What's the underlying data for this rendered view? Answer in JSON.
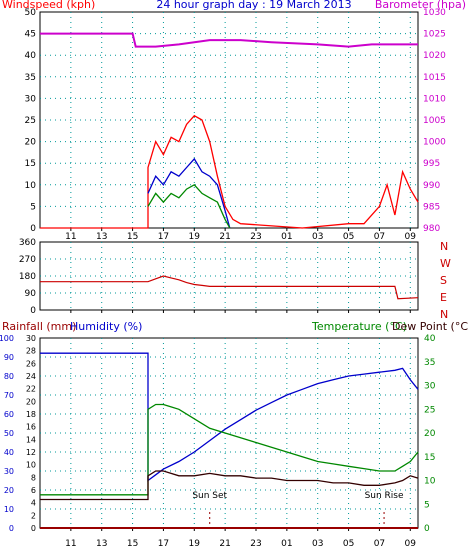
{
  "colors": {
    "windspeed": "#ff0000",
    "barometer": "#cc00cc",
    "direction": "#cc0000",
    "rainfall": "#990000",
    "humidity": "#0000cc",
    "temperature": "#008800",
    "dewpoint": "#330000",
    "title": "#0000cc"
  },
  "chart_data": [
    {
      "type": "line",
      "panel": "wind-barometer",
      "title": "24 hour graph day : 19 March 2013",
      "left_axis_label": "Windspeed (kph)",
      "right_axis_label": "Barometer (hpa)",
      "y_left_ticks": [
        "0",
        "5",
        "10",
        "15",
        "20",
        "25",
        "30",
        "35",
        "40",
        "45",
        "50"
      ],
      "y_right_ticks": [
        "980",
        "985",
        "990",
        "995",
        "1000",
        "1005",
        "1010",
        "1015",
        "1020",
        "1025",
        "1030"
      ],
      "ylim_left": [
        0,
        50
      ],
      "ylim_right": [
        980,
        1030
      ],
      "x_ticks": [
        "11",
        "13",
        "15",
        "17",
        "19",
        "21",
        "23",
        "01",
        "03",
        "05",
        "07",
        "09"
      ],
      "grid": true,
      "series": [
        {
          "name": "Barometer",
          "axis": "right",
          "x": [
            9,
            15,
            15.2,
            16.5,
            18,
            20,
            22,
            24,
            27,
            29,
            30.5,
            32,
            33.5
          ],
          "values": [
            1025,
            1025,
            1022,
            1022,
            1022.5,
            1023.5,
            1023.5,
            1023,
            1022.5,
            1022,
            1022.5,
            1022.5,
            1022.5
          ]
        },
        {
          "name": "Gust",
          "axis": "left",
          "x": [
            9,
            16,
            16,
            16.5,
            17,
            17.5,
            18,
            18.5,
            19,
            19.5,
            20,
            20.5,
            21,
            21.5,
            22,
            26,
            29,
            30,
            31,
            31.5,
            32,
            32.5,
            33,
            33.5
          ],
          "values": [
            0,
            0,
            14,
            20,
            17,
            21,
            20,
            24,
            26,
            25,
            20,
            12,
            5,
            2,
            1,
            0,
            1,
            1,
            5,
            10,
            3,
            13,
            9,
            6
          ]
        },
        {
          "name": "Average",
          "axis": "left",
          "x": [
            16,
            16.5,
            17,
            17.5,
            18,
            18.5,
            19,
            19.5,
            20,
            20.5,
            21,
            21.3
          ],
          "values": [
            8,
            12,
            10,
            13,
            12,
            14,
            16,
            13,
            12,
            10,
            4,
            0
          ]
        },
        {
          "name": "Lull",
          "axis": "left",
          "x": [
            16,
            16.5,
            17,
            17.5,
            18,
            18.5,
            19,
            19.5,
            20,
            20.5,
            21,
            21.3
          ],
          "values": [
            5,
            8,
            6,
            8,
            7,
            9,
            10,
            8,
            7,
            6,
            2,
            0
          ]
        }
      ]
    },
    {
      "type": "line",
      "panel": "wind-direction",
      "y_left_ticks": [
        "0",
        "90",
        "180",
        "270",
        "360"
      ],
      "y_right_labels": [
        "N",
        "W",
        "S",
        "E",
        "N"
      ],
      "ylim": [
        0,
        360
      ],
      "x_ticks": [
        "11",
        "13",
        "15",
        "17",
        "19",
        "21",
        "23",
        "01",
        "03",
        "05",
        "07",
        "09"
      ],
      "grid": true,
      "series": [
        {
          "name": "Direction",
          "x": [
            9,
            16,
            16.5,
            17,
            17.5,
            18,
            18.5,
            19,
            19.5,
            20,
            20.5,
            21,
            31,
            32,
            32.2,
            33.5
          ],
          "values": [
            150,
            150,
            165,
            180,
            170,
            160,
            145,
            135,
            130,
            125,
            125,
            125,
            125,
            125,
            60,
            65
          ]
        }
      ]
    },
    {
      "type": "line",
      "panel": "rain-humidity-temp",
      "left_axis_label_1": "Rainfall (mm)",
      "left_axis_label_2": "Humidity (%)",
      "right_axis_label_1": "Temperature (°C)",
      "right_axis_label_2": "Dew Point (°C)",
      "y_rain_ticks": [
        "0",
        "2",
        "4",
        "6",
        "8",
        "10",
        "12",
        "14",
        "16",
        "18",
        "20",
        "22",
        "24",
        "26",
        "28",
        "30"
      ],
      "y_humidity_ticks": [
        "0",
        "10",
        "20",
        "30",
        "40",
        "50",
        "60",
        "70",
        "80",
        "90",
        "100"
      ],
      "y_temp_ticks": [
        "0",
        "5",
        "10",
        "15",
        "20",
        "25",
        "30",
        "35",
        "40"
      ],
      "x_ticks": [
        "11",
        "13",
        "15",
        "17",
        "19",
        "21",
        "23",
        "01",
        "03",
        "05",
        "07",
        "09"
      ],
      "annotations": [
        "Sun Set",
        "Sun Rise"
      ],
      "annotation_x": [
        20,
        31.3
      ],
      "grid": true,
      "series": [
        {
          "name": "Humidity",
          "axis": "humidity",
          "x": [
            9,
            16,
            16,
            16.5,
            17,
            18,
            19,
            20,
            21,
            22,
            23,
            24,
            25,
            26,
            27,
            28,
            29,
            30,
            31,
            32,
            32.5,
            33,
            33.5
          ],
          "values": [
            92,
            92,
            25,
            28,
            31,
            35,
            40,
            46,
            52,
            57,
            62,
            66,
            70,
            73,
            76,
            78,
            80,
            81,
            82,
            83,
            84,
            78,
            73
          ]
        },
        {
          "name": "Temperature",
          "axis": "temp",
          "x": [
            9,
            16,
            16,
            16.5,
            17,
            17.5,
            18,
            19,
            20,
            21,
            22,
            23,
            24,
            25,
            26,
            27,
            28,
            29,
            30,
            31,
            32,
            32.5,
            33,
            33.5
          ],
          "values": [
            7,
            7,
            25,
            26,
            26,
            25.5,
            25,
            23,
            21,
            20,
            19,
            18,
            17,
            16,
            15,
            14,
            13.5,
            13,
            12.5,
            12,
            12,
            13,
            14,
            16
          ]
        },
        {
          "name": "Dew Point",
          "axis": "temp",
          "x": [
            9,
            16,
            16,
            16.5,
            17,
            17.5,
            18,
            19,
            20,
            21,
            22,
            23,
            24,
            25,
            26,
            27,
            28,
            29,
            30,
            31,
            32,
            32.5,
            33,
            33.5
          ],
          "values": [
            6,
            6,
            11,
            12,
            12,
            11.5,
            11,
            11,
            11.5,
            11,
            11,
            10.5,
            10.5,
            10,
            10,
            10,
            9.5,
            9.5,
            9,
            9,
            9.5,
            10,
            11,
            10.5
          ]
        },
        {
          "name": "Rainfall",
          "axis": "rain",
          "x": [
            9,
            33.5
          ],
          "values": [
            0,
            0
          ]
        }
      ]
    }
  ]
}
